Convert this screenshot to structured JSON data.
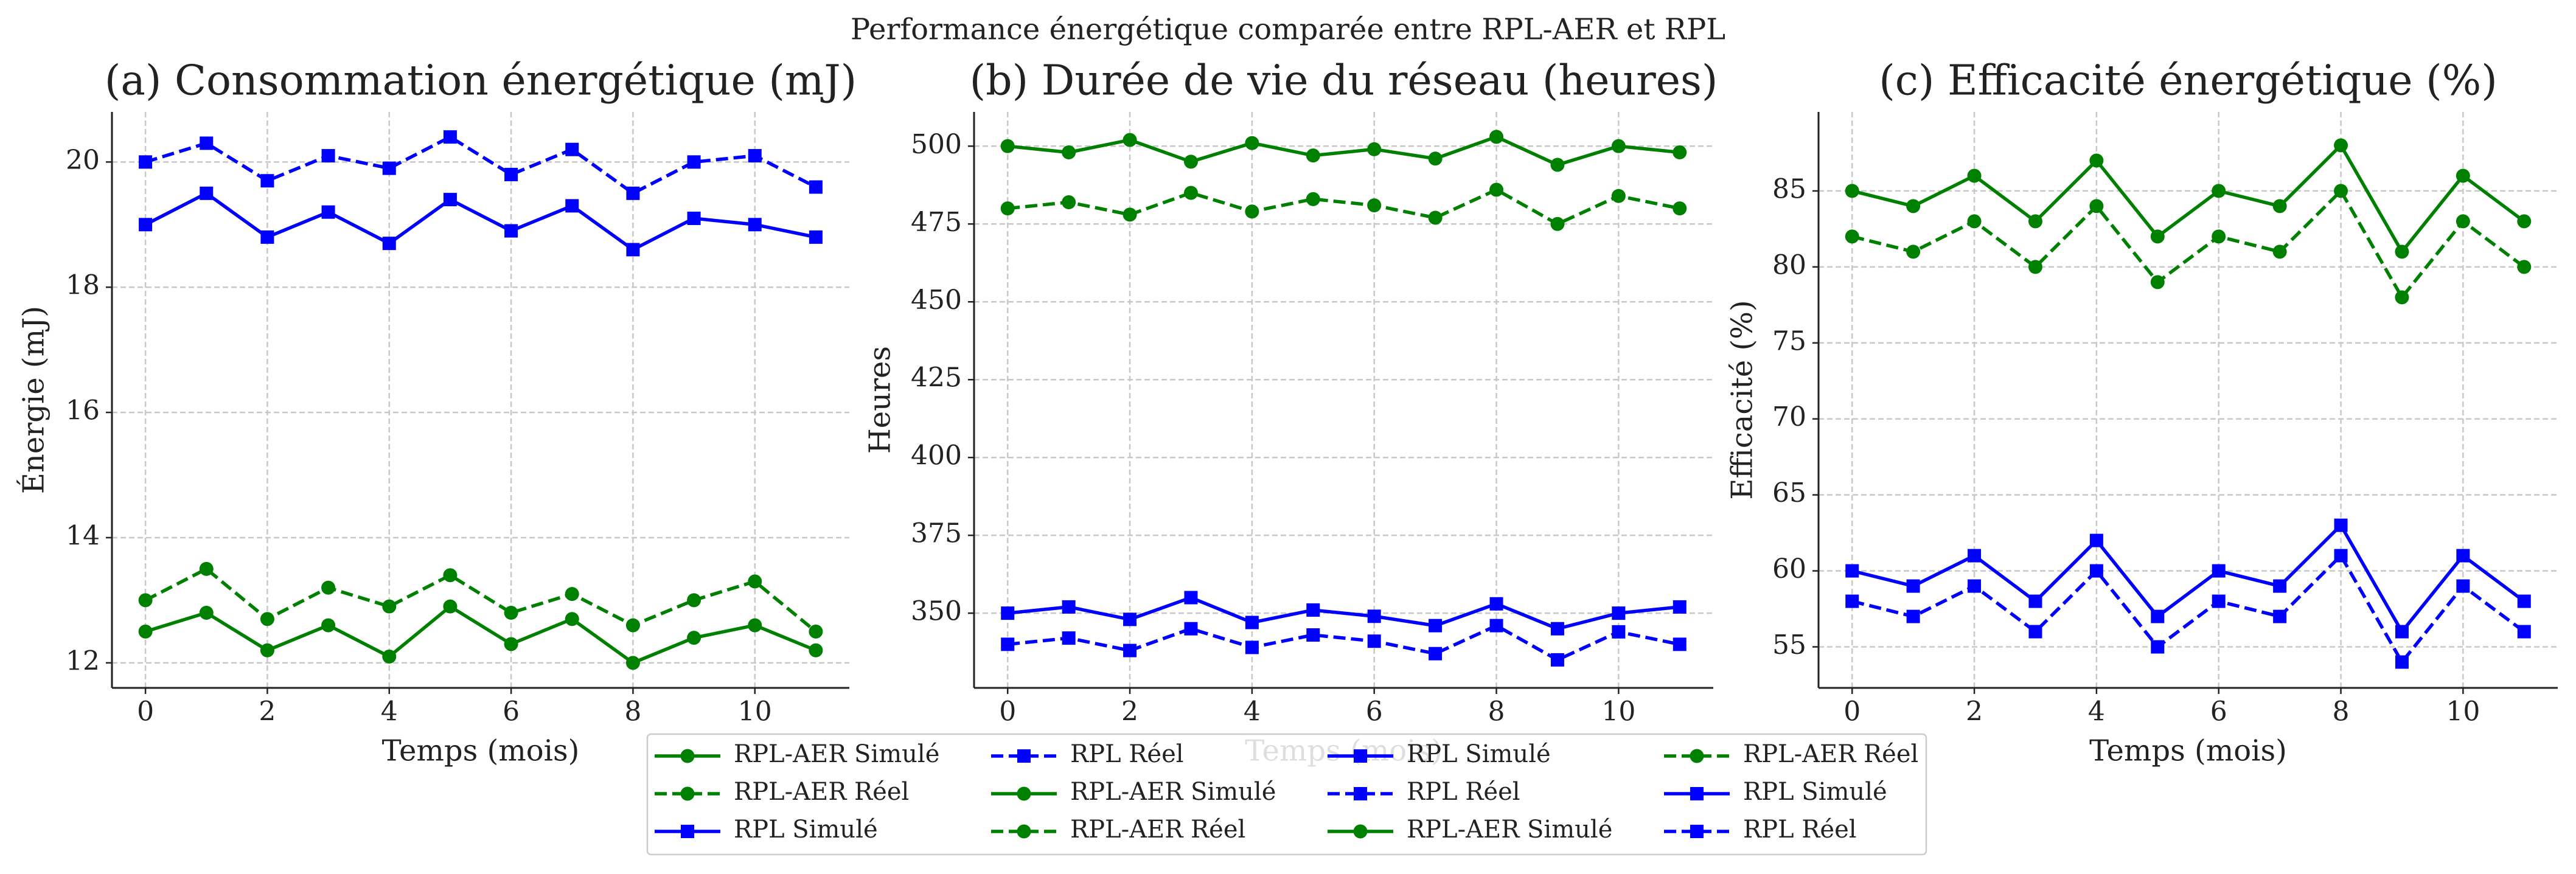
{
  "suptitle": "Performance énergétique comparée entre RPL-AER et RPL",
  "chart_data": [
    {
      "type": "line",
      "title": "(a) Consommation énergétique (mJ)",
      "xlabel": "Temps (mois)",
      "ylabel": "Énergie (mJ)",
      "x": [
        0,
        1,
        2,
        3,
        4,
        5,
        6,
        7,
        8,
        9,
        10,
        11
      ],
      "xlim": [
        -0.55,
        11.55
      ],
      "xticks": [
        0,
        2,
        4,
        6,
        8,
        10
      ],
      "ylim": [
        11.6,
        20.8
      ],
      "yticks": [
        12,
        14,
        16,
        18,
        20
      ],
      "grid": true,
      "series": [
        {
          "name": "RPL-AER Simulé",
          "color": "#008000",
          "linestyle": "solid",
          "marker": "circle",
          "values": [
            12.5,
            12.8,
            12.2,
            12.6,
            12.1,
            12.9,
            12.3,
            12.7,
            12.0,
            12.4,
            12.6,
            12.2
          ]
        },
        {
          "name": "RPL-AER Réel",
          "color": "#008000",
          "linestyle": "dashed",
          "marker": "circle",
          "values": [
            13.0,
            13.5,
            12.7,
            13.2,
            12.9,
            13.4,
            12.8,
            13.1,
            12.6,
            13.0,
            13.3,
            12.5
          ]
        },
        {
          "name": "RPL Simulé",
          "color": "#0000ff",
          "linestyle": "solid",
          "marker": "square",
          "values": [
            19.0,
            19.5,
            18.8,
            19.2,
            18.7,
            19.4,
            18.9,
            19.3,
            18.6,
            19.1,
            19.0,
            18.8
          ]
        },
        {
          "name": "RPL Réel",
          "color": "#0000ff",
          "linestyle": "dashed",
          "marker": "square",
          "values": [
            20.0,
            20.3,
            19.7,
            20.1,
            19.9,
            20.4,
            19.8,
            20.2,
            19.5,
            20.0,
            20.1,
            19.6
          ]
        }
      ]
    },
    {
      "type": "line",
      "title": "(b) Durée de vie du réseau (heures)",
      "xlabel": "Temps (mois)",
      "ylabel": "Heures",
      "x": [
        0,
        1,
        2,
        3,
        4,
        5,
        6,
        7,
        8,
        9,
        10,
        11
      ],
      "xlim": [
        -0.55,
        11.55
      ],
      "xticks": [
        0,
        2,
        4,
        6,
        8,
        10
      ],
      "ylim": [
        326,
        511
      ],
      "yticks": [
        350,
        375,
        400,
        425,
        450,
        475,
        500
      ],
      "grid": true,
      "series": [
        {
          "name": "RPL-AER Simulé",
          "color": "#008000",
          "linestyle": "solid",
          "marker": "circle",
          "values": [
            500,
            498,
            502,
            495,
            501,
            497,
            499,
            496,
            503,
            494,
            500,
            498
          ]
        },
        {
          "name": "RPL-AER Réel",
          "color": "#008000",
          "linestyle": "dashed",
          "marker": "circle",
          "values": [
            480,
            482,
            478,
            485,
            479,
            483,
            481,
            477,
            486,
            475,
            484,
            480
          ]
        },
        {
          "name": "RPL Simulé",
          "color": "#0000ff",
          "linestyle": "solid",
          "marker": "square",
          "values": [
            350,
            352,
            348,
            355,
            347,
            351,
            349,
            346,
            353,
            345,
            350,
            352
          ]
        },
        {
          "name": "RPL Réel",
          "color": "#0000ff",
          "linestyle": "dashed",
          "marker": "square",
          "values": [
            340,
            342,
            338,
            345,
            339,
            343,
            341,
            337,
            346,
            335,
            344,
            340
          ]
        }
      ]
    },
    {
      "type": "line",
      "title": "(c) Efficacité énergétique (%)",
      "xlabel": "Temps (mois)",
      "ylabel": "Efficacité (%)",
      "x": [
        0,
        1,
        2,
        3,
        4,
        5,
        6,
        7,
        8,
        9,
        10,
        11
      ],
      "xlim": [
        -0.55,
        11.55
      ],
      "xticks": [
        0,
        2,
        4,
        6,
        8,
        10
      ],
      "ylim": [
        52.3,
        90.2
      ],
      "yticks": [
        55,
        60,
        65,
        70,
        75,
        80,
        85
      ],
      "grid": true,
      "series": [
        {
          "name": "RPL-AER Simulé",
          "color": "#008000",
          "linestyle": "solid",
          "marker": "circle",
          "values": [
            85,
            84,
            86,
            83,
            87,
            82,
            85,
            84,
            88,
            81,
            86,
            83
          ]
        },
        {
          "name": "RPL-AER Réel",
          "color": "#008000",
          "linestyle": "dashed",
          "marker": "circle",
          "values": [
            82,
            81,
            83,
            80,
            84,
            79,
            82,
            81,
            85,
            78,
            83,
            80
          ]
        },
        {
          "name": "RPL Simulé",
          "color": "#0000ff",
          "linestyle": "solid",
          "marker": "square",
          "values": [
            60,
            59,
            61,
            58,
            62,
            57,
            60,
            59,
            63,
            56,
            61,
            58
          ]
        },
        {
          "name": "RPL Réel",
          "color": "#0000ff",
          "linestyle": "dashed",
          "marker": "square",
          "values": [
            58,
            57,
            59,
            56,
            60,
            55,
            58,
            57,
            61,
            54,
            59,
            56
          ]
        }
      ]
    }
  ]
}
